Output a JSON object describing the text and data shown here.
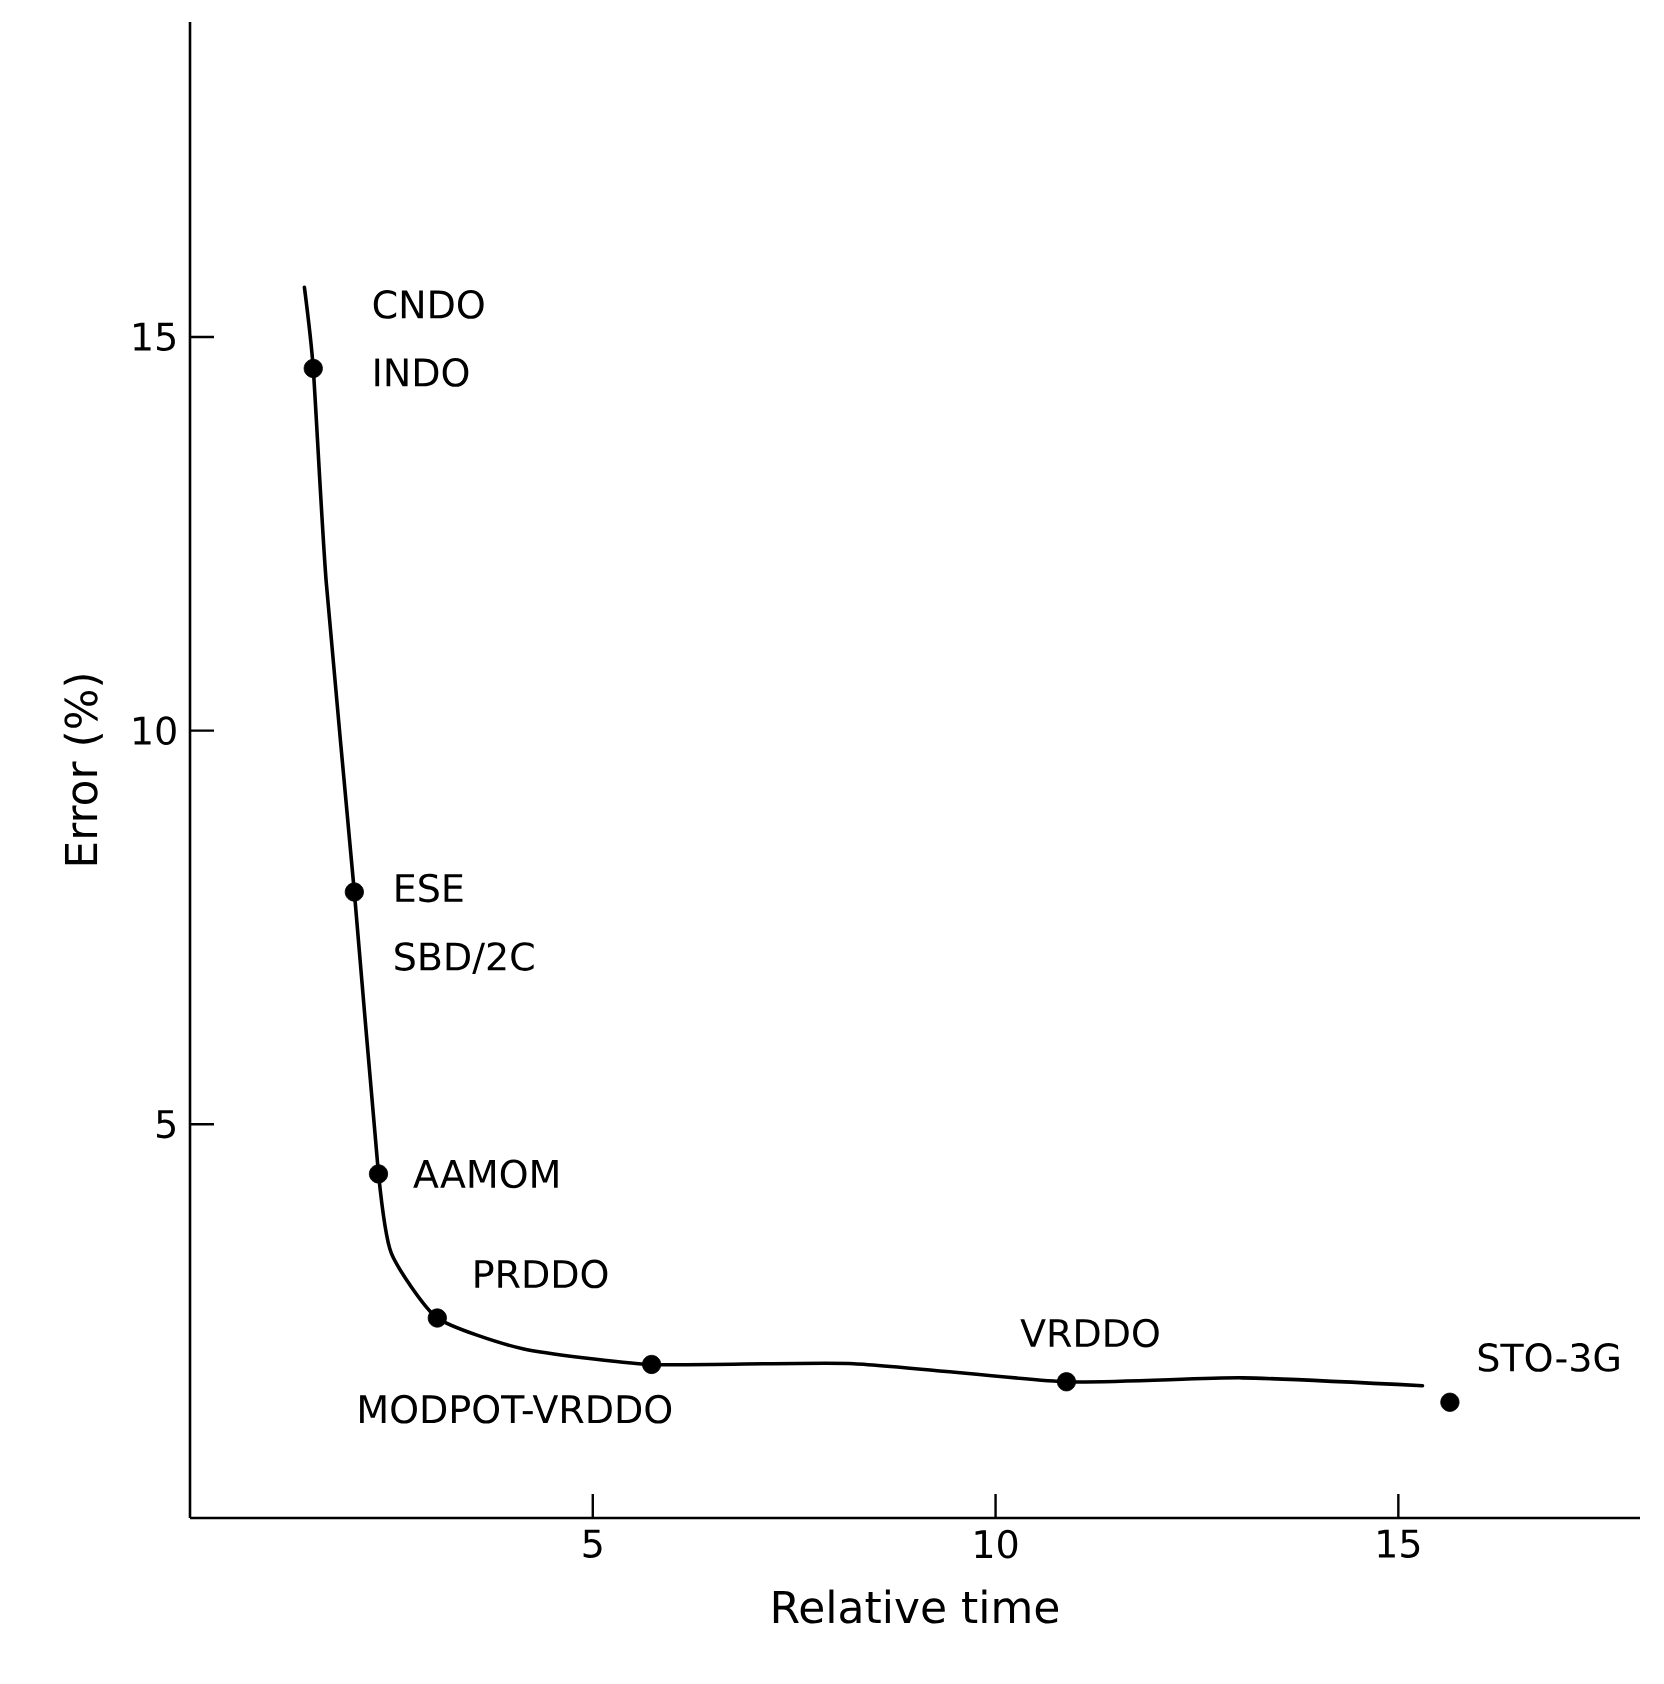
{
  "chart_data": {
    "type": "scatter",
    "xlabel": "Relative time",
    "ylabel": "Error (%)",
    "xlim": [
      0,
      18
    ],
    "ylim": [
      0,
      19
    ],
    "xticks": [
      5,
      10,
      15
    ],
    "yticks": [
      5,
      10,
      15
    ],
    "grid": false,
    "series": [
      {
        "type": "line",
        "color": "#000000",
        "marker": "none",
        "line_style": "solid",
        "x": [
          1.42,
          1.53,
          1.69,
          2.04,
          2.34,
          2.5,
          3.07,
          4.13,
          5.73,
          8.24,
          10.88,
          13.06,
          15.3
        ],
        "values": [
          15.63,
          14.6,
          11.9,
          7.95,
          4.37,
          3.36,
          2.54,
          2.15,
          1.95,
          1.96,
          1.73,
          1.78,
          1.68
        ]
      },
      {
        "type": "scatter",
        "color": "#000000",
        "marker": "circle",
        "x": [
          1.53,
          2.04,
          2.34,
          3.07,
          5.73,
          10.88,
          15.64
        ],
        "values": [
          14.6,
          7.95,
          4.37,
          2.54,
          1.95,
          1.73,
          1.47
        ]
      }
    ],
    "annotations": [
      {
        "text": "CNDO",
        "x": 1.53,
        "y": 14.6
      },
      {
        "text": "INDO",
        "x": 1.53,
        "y": 14.6
      },
      {
        "text": "ESE",
        "x": 2.04,
        "y": 7.95
      },
      {
        "text": "SBD/2C",
        "x": 2.04,
        "y": 7.95
      },
      {
        "text": "AAMOM",
        "x": 2.34,
        "y": 4.37
      },
      {
        "text": "PRDDO",
        "x": 3.07,
        "y": 2.54
      },
      {
        "text": "MODPOT-VRDDO",
        "x": 5.73,
        "y": 1.95
      },
      {
        "text": "VRDDO",
        "x": 10.88,
        "y": 1.73
      },
      {
        "text": "STO-3G",
        "x": 15.64,
        "y": 1.47
      }
    ]
  }
}
